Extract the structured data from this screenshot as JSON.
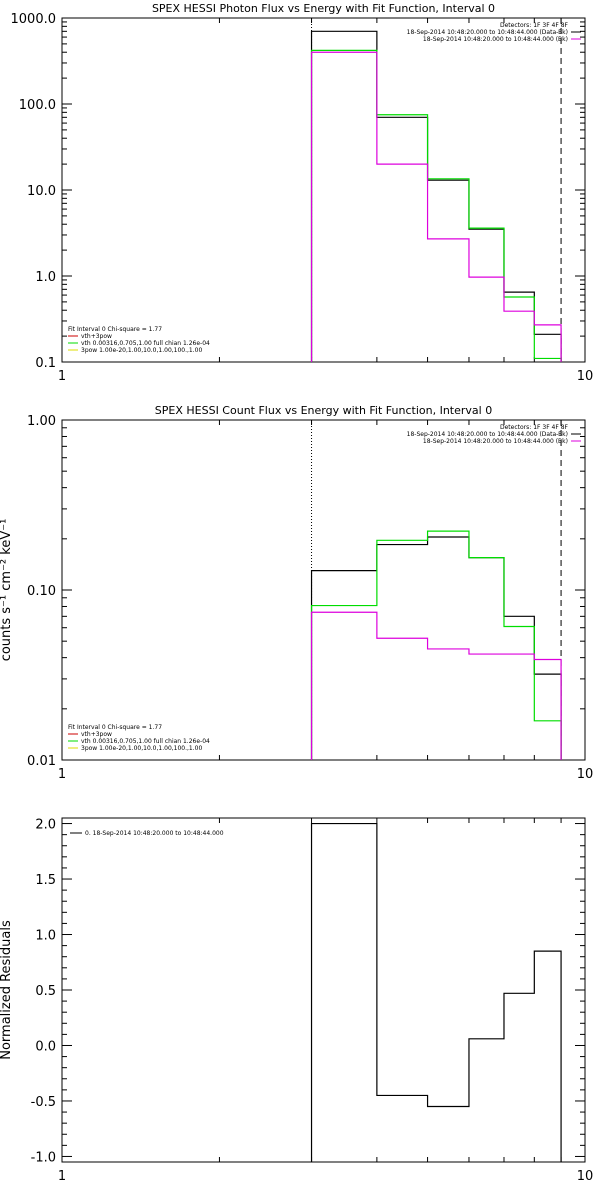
{
  "chart_data": [
    {
      "type": "line",
      "step": true,
      "title": "SPEX HESSI Photon Flux vs Energy with Fit Function, Interval 0",
      "xlabel": "",
      "ylabel": "",
      "xscale": "log",
      "yscale": "log",
      "xlim": [
        1,
        10
      ],
      "ylim": [
        0.1,
        1000
      ],
      "x_ticks": [
        "1",
        "10"
      ],
      "y_ticks": [
        {
          "value": 0.1,
          "label": "0.1"
        },
        {
          "value": 1,
          "label": "1.0"
        },
        {
          "value": 10,
          "label": "10.0"
        },
        {
          "value": 100,
          "label": "100.0"
        },
        {
          "value": 1000,
          "label": "1000.0"
        }
      ],
      "x_edges": [
        3,
        4,
        5,
        6,
        7,
        8,
        9
      ],
      "vlines": [
        {
          "x": 3,
          "style": "dotted"
        },
        {
          "x": 9,
          "style": "dashed"
        }
      ],
      "series": [
        {
          "color": "#000000",
          "values": [
            700,
            70,
            13,
            3.5,
            0.65,
            0.21
          ]
        },
        {
          "color": "#00dd00",
          "values": [
            420,
            75,
            13.5,
            3.6,
            0.57,
            0.11
          ]
        },
        {
          "color": "#dd00dd",
          "values": [
            400,
            20,
            2.7,
            0.97,
            0.39,
            0.27
          ]
        }
      ],
      "legend_top": [
        {
          "text": "Detectors: 1F 3F 4F 8F",
          "color": ""
        },
        {
          "text": "18-Sep-2014 10:48:20.000 to 10:48:44.000 (Data-Bk)",
          "color": "#000000"
        },
        {
          "text": "18-Sep-2014 10:48:20.000 to 10:48:44.000 (Bk)",
          "color": "#dd00dd"
        }
      ],
      "legend_bottom": [
        {
          "text": "Fit Interval 0   Chi-square = 1.77",
          "color": ""
        },
        {
          "text": "vth+3pow",
          "color": "#cc0000"
        },
        {
          "text": "vth 0.00316,0.705,1.00  full chian 1.26e-04",
          "color": "#00dd00"
        },
        {
          "text": "3pow 1.00e-20,1.00,10.0,1.00,100.,1.00",
          "color": "#dddd00"
        }
      ]
    },
    {
      "type": "line",
      "step": true,
      "title": "SPEX HESSI Count Flux vs Energy with Fit Function, Interval 0",
      "xlabel": "",
      "ylabel": "counts s⁻¹ cm⁻² keV⁻¹",
      "xscale": "log",
      "yscale": "log",
      "xlim": [
        1,
        10
      ],
      "ylim": [
        0.01,
        1
      ],
      "x_ticks": [
        "1",
        "10"
      ],
      "y_ticks": [
        {
          "value": 0.01,
          "label": "0.01"
        },
        {
          "value": 0.1,
          "label": "0.10"
        },
        {
          "value": 1,
          "label": "1.00"
        }
      ],
      "x_edges": [
        3,
        4,
        5,
        6,
        7,
        8,
        9
      ],
      "vlines": [
        {
          "x": 3,
          "style": "dotted"
        },
        {
          "x": 9,
          "style": "dashed"
        }
      ],
      "series": [
        {
          "color": "#000000",
          "values": [
            0.13,
            0.185,
            0.205,
            0.155,
            0.07,
            0.032
          ]
        },
        {
          "color": "#00dd00",
          "values": [
            0.081,
            0.196,
            0.222,
            0.155,
            0.061,
            0.017
          ]
        },
        {
          "color": "#dd00dd",
          "values": [
            0.074,
            0.052,
            0.045,
            0.042,
            0.042,
            0.039
          ]
        }
      ],
      "legend_top": [
        {
          "text": "Detectors: 1F 3F 4F 8F",
          "color": ""
        },
        {
          "text": "18-Sep-2014 10:48:20.000 to 10:48:44.000 (Data-Bk)",
          "color": "#000000"
        },
        {
          "text": "18-Sep-2014 10:48:20.000 to 10:48:44.000 (Bk)",
          "color": "#dd00dd"
        }
      ],
      "legend_bottom": [
        {
          "text": "Fit Interval 0   Chi-square = 1.77",
          "color": ""
        },
        {
          "text": "vth+3pow",
          "color": "#cc0000"
        },
        {
          "text": "vth 0.00316,0.705,1.00  full chian 1.26e-04",
          "color": "#00dd00"
        },
        {
          "text": "3pow 1.00e-20,1.00,10.0,1.00,100.,1.00",
          "color": "#dddd00"
        }
      ]
    },
    {
      "type": "line",
      "step": true,
      "title": "",
      "xlabel": "",
      "ylabel": "Normalized Residuals",
      "xscale": "log",
      "yscale": "linear",
      "xlim": [
        1,
        10
      ],
      "ylim": [
        -1.05,
        2.05
      ],
      "x_ticks": [
        "1",
        "10"
      ],
      "y_ticks": [
        {
          "value": -1,
          "label": "-1.0"
        },
        {
          "value": -0.5,
          "label": "-0.5"
        },
        {
          "value": 0,
          "label": "0.0"
        },
        {
          "value": 0.5,
          "label": "0.5"
        },
        {
          "value": 1,
          "label": "1.0"
        },
        {
          "value": 1.5,
          "label": "1.5"
        },
        {
          "value": 2,
          "label": "2.0"
        }
      ],
      "x_edges": [
        3,
        4,
        5,
        6,
        7,
        8,
        9
      ],
      "vlines": [],
      "series": [
        {
          "color": "#000000",
          "values": [
            2.0,
            -0.45,
            -0.55,
            0.06,
            0.47,
            0.85
          ]
        }
      ],
      "legend_top": [
        {
          "text": "0. 18-Sep-2014 10:48:20.000 to 10:48:44.000",
          "color": "#000000"
        }
      ],
      "legend_bottom": []
    }
  ]
}
